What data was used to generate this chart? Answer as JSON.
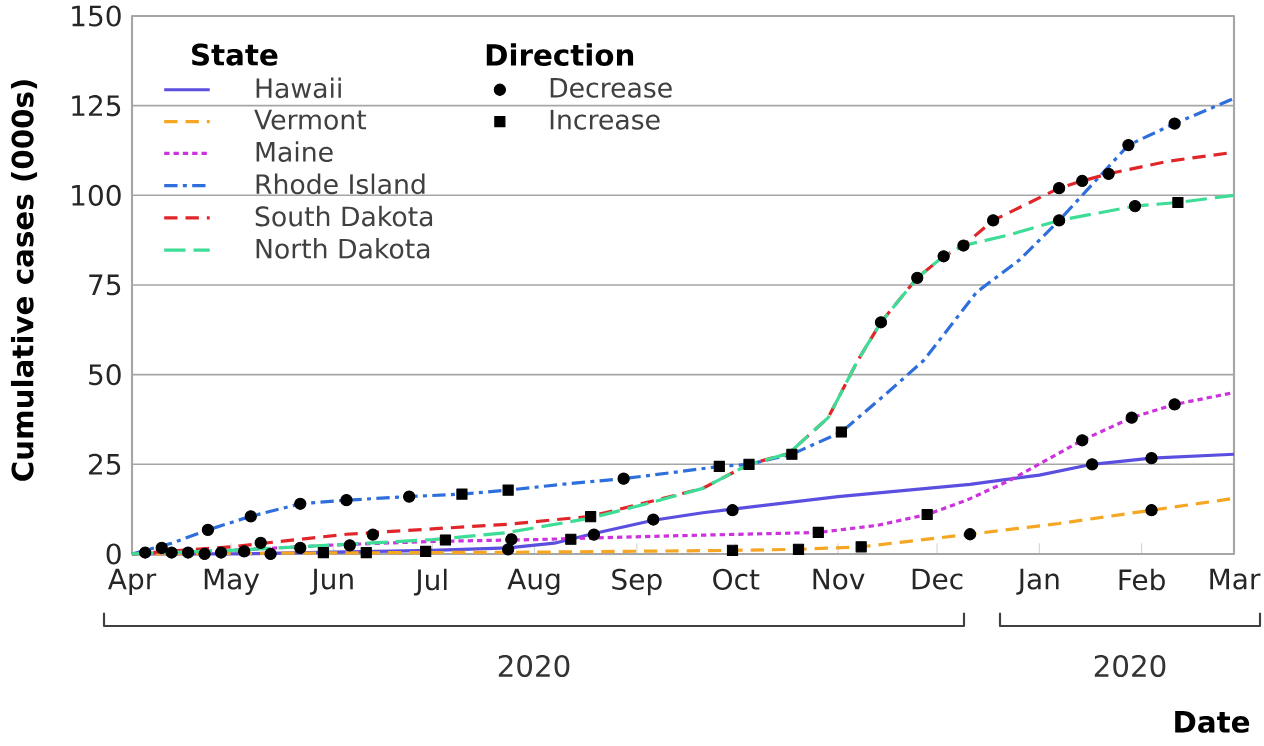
{
  "chart_data": {
    "type": "line",
    "ylabel": "Cumulative cases (000s)",
    "xlabel": "Date",
    "legend_title": "State",
    "annotations": [
      "Direction",
      "2020",
      "2020"
    ],
    "xlim": [
      "2020-04-01",
      "2021-03-01"
    ],
    "ylim": [
      0,
      150
    ],
    "xticks": [
      {
        "value": "2020-04-01",
        "label": "Apr"
      },
      {
        "value": "2020-05-01",
        "label": "May"
      },
      {
        "value": "2020-06-01",
        "label": "Jun"
      },
      {
        "value": "2020-07-01",
        "label": "Jul"
      },
      {
        "value": "2020-08-01",
        "label": "Aug"
      },
      {
        "value": "2020-09-01",
        "label": "Sep"
      },
      {
        "value": "2020-10-01",
        "label": "Oct"
      },
      {
        "value": "2020-11-01",
        "label": "Nov"
      },
      {
        "value": "2020-12-01",
        "label": "Dec"
      },
      {
        "value": "2021-01-01",
        "label": "Jan"
      },
      {
        "value": "2021-02-01",
        "label": "Feb"
      },
      {
        "value": "2021-03-01",
        "label": "Mar"
      }
    ],
    "yticks": [
      0,
      25,
      50,
      75,
      100,
      125,
      150
    ],
    "grid": "y",
    "legend": "top left",
    "series": [
      {
        "name": "Hawaii",
        "color": "#5b4fe0",
        "line_style": "solid",
        "x": [
          "2020-04-01",
          "2020-05-01",
          "2020-06-01",
          "2020-07-01",
          "2020-07-24",
          "2020-08-07",
          "2020-08-18",
          "2020-09-06",
          "2020-09-21",
          "2020-09-30",
          "2020-11-01",
          "2020-12-11",
          "2021-01-01",
          "2021-01-17",
          "2021-02-04",
          "2021-03-01"
        ],
        "values": [
          0,
          0,
          0.5,
          1,
          1.7,
          3,
          5.5,
          9.4,
          11.5,
          12.5,
          16,
          19.4,
          22,
          25,
          26.7,
          27.8
        ]
      },
      {
        "name": "Vermont",
        "color": "#f5a623",
        "line_style": "dashed",
        "x": [
          "2020-04-01",
          "2020-06-01",
          "2020-08-01",
          "2020-09-30",
          "2020-10-20",
          "2020-11-08",
          "2020-12-11",
          "2021-01-07",
          "2021-02-04",
          "2021-03-01"
        ],
        "values": [
          0,
          0.3,
          0.5,
          1,
          1.3,
          2,
          5.5,
          8.5,
          12.2,
          15.5
        ]
      },
      {
        "name": "Maine",
        "color": "#cc33dd",
        "line_style": "dotted",
        "x": [
          "2020-04-01",
          "2020-05-01",
          "2020-06-01",
          "2020-07-01",
          "2020-08-01",
          "2020-09-09",
          "2020-10-26",
          "2020-11-13",
          "2020-11-28",
          "2020-12-10",
          "2020-12-23",
          "2021-01-14",
          "2021-01-29",
          "2021-02-11",
          "2021-03-01"
        ],
        "values": [
          0,
          1,
          2.5,
          3.5,
          4,
          5,
          6,
          8,
          11,
          15,
          20.5,
          31.7,
          38,
          41.7,
          45
        ]
      },
      {
        "name": "Rhode Island",
        "color": "#2f6fdc",
        "line_style": "dashdot",
        "x": [
          "2020-04-01",
          "2020-04-13",
          "2020-04-24",
          "2020-05-07",
          "2020-05-22",
          "2020-06-05",
          "2020-06-24",
          "2020-07-10",
          "2020-07-24",
          "2020-08-10",
          "2020-08-28",
          "2020-09-10",
          "2020-09-26",
          "2020-10-05",
          "2020-10-18",
          "2020-11-02",
          "2020-11-16",
          "2020-11-27",
          "2020-12-13",
          "2020-12-26",
          "2021-01-07",
          "2021-01-17",
          "2021-01-28",
          "2021-02-11",
          "2021-03-01"
        ],
        "values": [
          0,
          3,
          6.7,
          10.5,
          14,
          15,
          16,
          16.7,
          17.8,
          19.5,
          21,
          22.5,
          24.4,
          25,
          27.8,
          34,
          45,
          54,
          73,
          82,
          93,
          103,
          114,
          120,
          127
        ]
      },
      {
        "name": "South Dakota",
        "color": "#e0262a",
        "line_style": "dashed",
        "x": [
          "2020-04-01",
          "2020-04-16",
          "2020-05-01",
          "2020-06-05",
          "2020-07-01",
          "2020-07-24",
          "2020-08-18",
          "2020-09-09",
          "2020-09-21",
          "2020-10-05",
          "2020-10-17",
          "2020-10-29",
          "2020-11-07",
          "2020-11-14",
          "2020-11-25",
          "2020-12-03",
          "2020-12-09",
          "2020-12-18",
          "2021-01-07",
          "2021-01-14",
          "2021-01-22",
          "2021-02-09",
          "2021-03-01"
        ],
        "values": [
          0,
          1,
          2,
          5.5,
          7,
          8.3,
          10.5,
          15.5,
          18.3,
          25,
          28,
          38,
          54,
          64.6,
          77,
          83,
          86,
          93,
          102,
          104,
          106,
          109.5,
          112
        ]
      },
      {
        "name": "North Dakota",
        "color": "#3ddc97",
        "line_style": "longdashed",
        "x": [
          "2020-04-01",
          "2020-05-01",
          "2020-06-01",
          "2020-07-01",
          "2020-07-24",
          "2020-08-18",
          "2020-09-04",
          "2020-09-21",
          "2020-10-05",
          "2020-10-17",
          "2020-10-29",
          "2020-11-07",
          "2020-11-14",
          "2020-11-25",
          "2020-12-03",
          "2020-12-09",
          "2020-12-23",
          "2021-01-07",
          "2021-01-30",
          "2021-02-12",
          "2021-03-01"
        ],
        "values": [
          0,
          1,
          2.5,
          4,
          6,
          10,
          14,
          18.3,
          25,
          28,
          38,
          54,
          64.6,
          77,
          83,
          86,
          89,
          93,
          97,
          98,
          100
        ]
      },
      {
        "name": "Decrease",
        "type": "scatter",
        "marker": "circle",
        "color": "#000000",
        "x": [
          "2020-04-05",
          "2020-04-10",
          "2020-04-13",
          "2020-04-18",
          "2020-04-23",
          "2020-04-28",
          "2020-05-05",
          "2020-05-10",
          "2020-05-13",
          "2020-05-22",
          "2020-06-06",
          "2020-06-13",
          "2020-07-24",
          "2020-07-25",
          "2020-08-19",
          "2020-09-06",
          "2020-04-24",
          "2020-05-07",
          "2020-05-22",
          "2020-06-05",
          "2020-06-24",
          "2020-08-28",
          "2021-01-28",
          "2021-02-11",
          "2021-01-07",
          "2020-11-14",
          "2020-11-25",
          "2020-12-03",
          "2020-12-09",
          "2020-12-18",
          "2021-01-07",
          "2021-01-14",
          "2021-01-22",
          "2021-01-30",
          "2020-09-30",
          "2021-01-17",
          "2021-02-04",
          "2021-01-14",
          "2021-01-29",
          "2021-02-11",
          "2020-12-11",
          "2021-02-04"
        ],
        "values": [
          0.4,
          1.7,
          0.4,
          0.4,
          0,
          0.4,
          0.7,
          3.1,
          0,
          1.7,
          2.4,
          5.4,
          1.3,
          4.1,
          5.4,
          9.6,
          6.7,
          10.5,
          14,
          15,
          16,
          21,
          114,
          120,
          93,
          64.6,
          77,
          83,
          86,
          93,
          102,
          104,
          106,
          97,
          12.2,
          25,
          26.7,
          31.7,
          38,
          41.7,
          5.5,
          12.2
        ]
      },
      {
        "name": "Increase",
        "type": "scatter",
        "marker": "square",
        "color": "#000000",
        "x": [
          "2020-05-29",
          "2020-06-11",
          "2020-06-29",
          "2020-07-05",
          "2020-08-12",
          "2020-08-18",
          "2020-07-10",
          "2020-07-24",
          "2020-09-26",
          "2020-10-05",
          "2020-10-18",
          "2020-11-02",
          "2020-09-30",
          "2020-10-20",
          "2020-11-08",
          "2020-10-26",
          "2020-11-28",
          "2021-02-12"
        ],
        "values": [
          0.4,
          0.4,
          0.7,
          3.9,
          4.1,
          10.4,
          16.7,
          17.8,
          24.4,
          25,
          27.8,
          34,
          1,
          1.3,
          2,
          6,
          11,
          98
        ]
      }
    ]
  }
}
